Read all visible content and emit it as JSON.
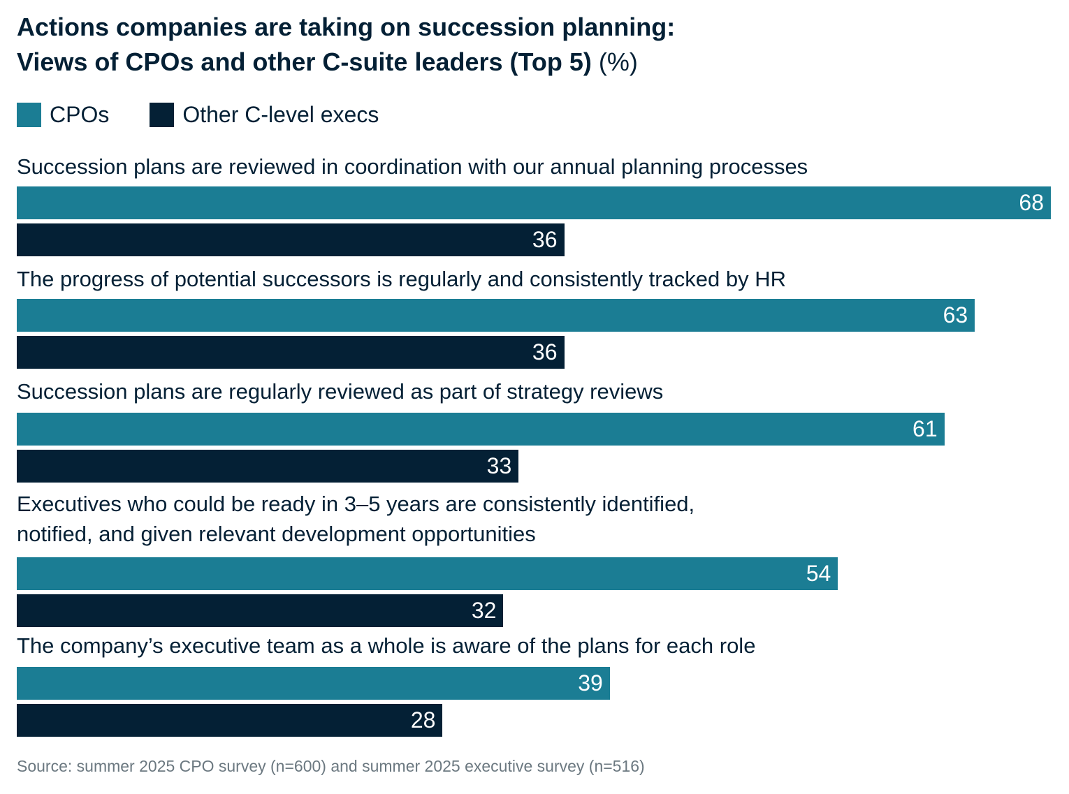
{
  "chart_data": {
    "type": "bar",
    "orientation": "horizontal",
    "title_line1": "Actions companies are taking on succession planning:",
    "title_line2": "Views of CPOs and other C-suite leaders (Top 5)",
    "title_unit": "(%)",
    "legend_placement": "top-left",
    "categories": [
      "Succession plans are reviewed in coordination with our annual planning processes",
      "The progress of potential successors is regularly and consistently tracked by HR",
      "Succession plans are regularly reviewed as part of strategy reviews",
      "Executives who could be ready in 3–5 years are consistently identified,\nnotified, and given relevant development opportunities",
      "The company’s executive team as a whole is aware of the plans for each role"
    ],
    "series": [
      {
        "name": "CPOs",
        "color": "#1b7d94",
        "values": [
          68,
          63,
          61,
          54,
          39
        ]
      },
      {
        "name": "Other C-level execs",
        "color": "#042035",
        "values": [
          36,
          36,
          33,
          32,
          28
        ]
      }
    ],
    "xlim": [
      0,
      68
    ],
    "grid": false,
    "source": "Source: summer 2025 CPO survey (n=600) and summer 2025 executive survey (n=516)"
  }
}
